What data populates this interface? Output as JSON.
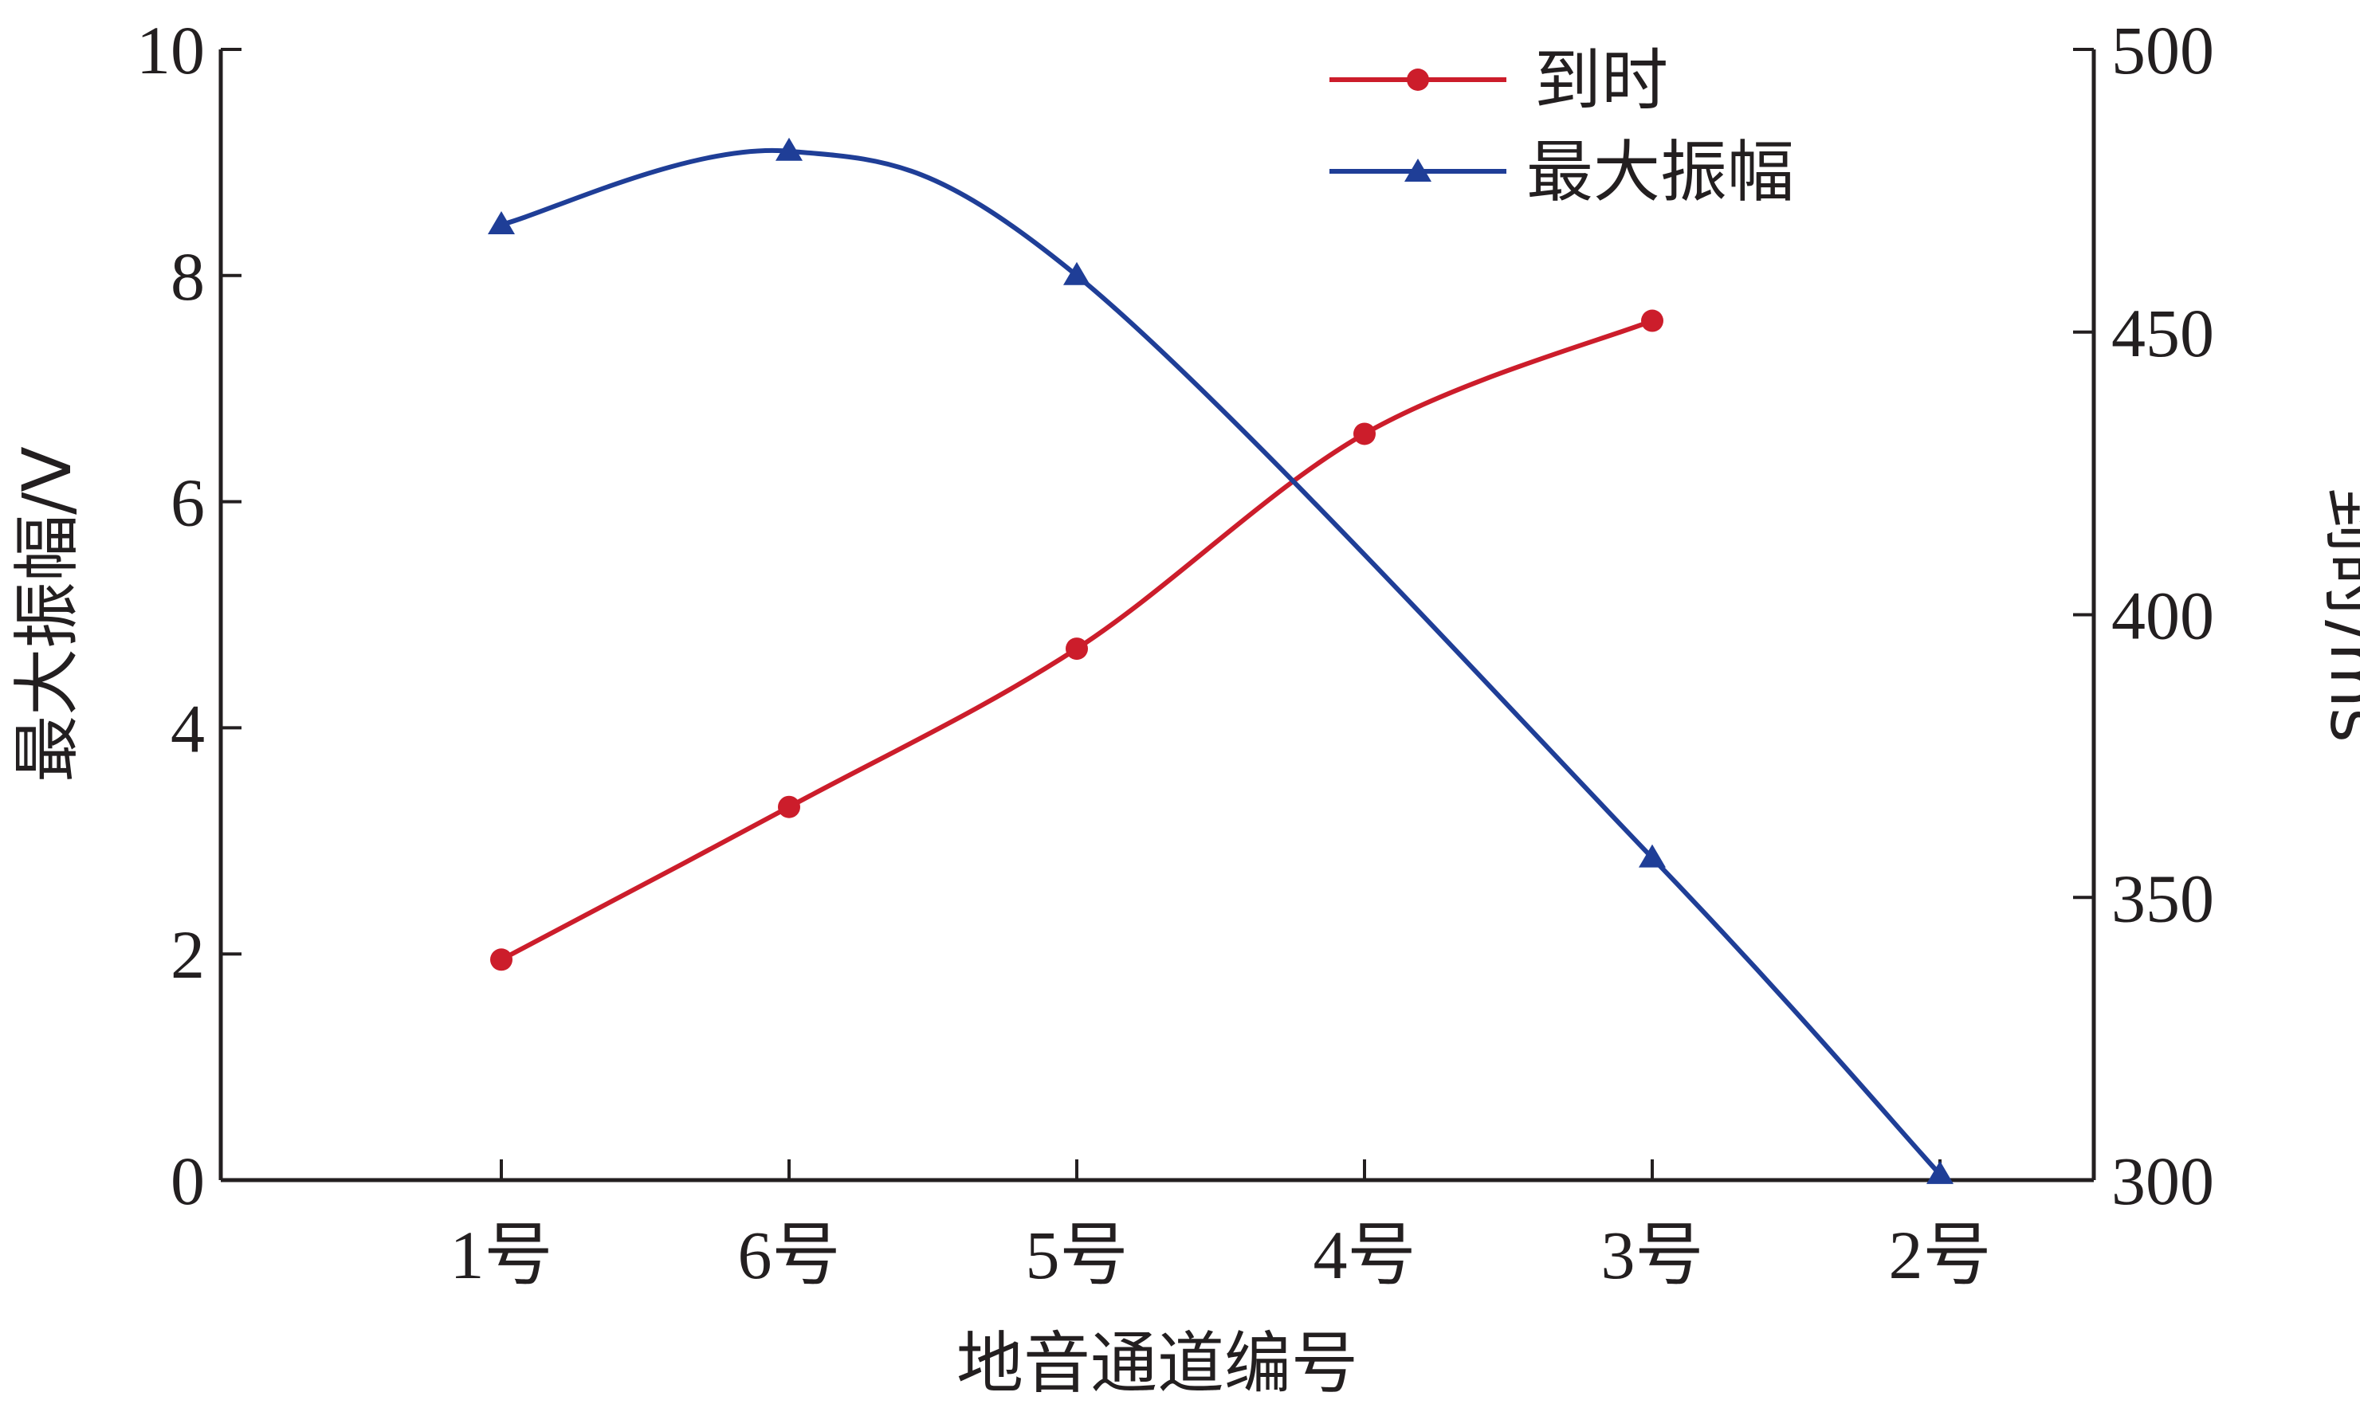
{
  "chart_data": {
    "type": "line",
    "categories": [
      "1号",
      "6号",
      "5号",
      "4号",
      "3号",
      "2号"
    ],
    "xlabel": "地音通道编号",
    "ylabel_left": "最大振幅/V",
    "ylabel_right": "到时/ms",
    "y_left": {
      "min": 0,
      "max": 10,
      "ticks": [
        0,
        2,
        4,
        6,
        8,
        10
      ]
    },
    "y_right": {
      "min": 300,
      "max": 500,
      "ticks": [
        300,
        350,
        400,
        450,
        500
      ]
    },
    "legend_position": "top-right",
    "grid": false,
    "series": [
      {
        "name": "到时",
        "axis": "right",
        "color": "#cc1d2b",
        "marker": "circle",
        "values": [
          339,
          366,
          394,
          432,
          452,
          null
        ]
      },
      {
        "name": "最大振幅",
        "axis": "left",
        "color": "#1f3e97",
        "marker": "triangle",
        "values": [
          8.45,
          9.1,
          8.0,
          null,
          2.85,
          0.05
        ]
      }
    ]
  }
}
